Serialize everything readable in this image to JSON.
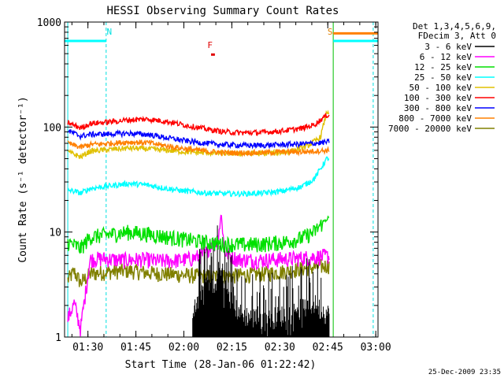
{
  "chart_data": {
    "type": "line",
    "title": "HESSI Observing Summary Count Rates",
    "xlabel": "Start Time (28-Jan-06 01:22:42)",
    "ylabel": "Count Rate (s⁻¹ detector⁻¹)",
    "yscale": "log",
    "ylim": [
      1,
      1000
    ],
    "xlim_minutes": [
      0,
      98
    ],
    "x_ticks": [
      {
        "m": 7.3,
        "label": "01:30"
      },
      {
        "m": 22.3,
        "label": "01:45"
      },
      {
        "m": 37.3,
        "label": "02:00"
      },
      {
        "m": 52.3,
        "label": "02:15"
      },
      {
        "m": 67.3,
        "label": "02:30"
      },
      {
        "m": 82.3,
        "label": "02:45"
      },
      {
        "m": 97.3,
        "label": "03:00"
      }
    ],
    "y_ticks": [
      {
        "v": 1,
        "label": "1"
      },
      {
        "v": 10,
        "label": "10"
      },
      {
        "v": 100,
        "label": "100"
      },
      {
        "v": 1000,
        "label": "1000"
      }
    ],
    "legend_header": [
      "Det 1,3,4,5,6,9,",
      "FDecim 3, Att 0"
    ],
    "legend_position": "top-right",
    "timestamp": "25-Dec-2009 23:35",
    "markers": [
      {
        "text": "N",
        "m": 13.0,
        "color": "#00e0e0"
      },
      {
        "text": "S",
        "m": 84.0,
        "color": "#e08000"
      },
      {
        "text": "F",
        "m": 44.5,
        "color": "#e00000"
      }
    ],
    "night_lines": [
      13.0,
      96.5
    ],
    "data_window": [
      1.0,
      82.8
    ],
    "series": [
      {
        "name": "3 - 6 keV",
        "color": "#000000",
        "points": [
          [
            41,
            1.8
          ],
          [
            43,
            2.8
          ],
          [
            45,
            3.5
          ],
          [
            47,
            2.6
          ],
          [
            48,
            4.5
          ],
          [
            50,
            3.0
          ],
          [
            52,
            2.2
          ],
          [
            55,
            1.6
          ],
          [
            58,
            1.5
          ],
          [
            62,
            1.4
          ],
          [
            66,
            1.5
          ],
          [
            70,
            1.6
          ],
          [
            74,
            1.8
          ],
          [
            78,
            2.0
          ],
          [
            82,
            1.6
          ]
        ]
      },
      {
        "name": "6 - 12 keV",
        "color": "#ff00ff",
        "points": [
          [
            1,
            1.5
          ],
          [
            3,
            2.1
          ],
          [
            5,
            1.2
          ],
          [
            8,
            5.5
          ],
          [
            12,
            5.6
          ],
          [
            18,
            5.4
          ],
          [
            24,
            5.5
          ],
          [
            30,
            5.3
          ],
          [
            36,
            5.4
          ],
          [
            40,
            5.6
          ],
          [
            44,
            6.2
          ],
          [
            46,
            8.0
          ],
          [
            47,
            7.5
          ],
          [
            48,
            9.0
          ],
          [
            49,
            15.0
          ],
          [
            50,
            6.5
          ],
          [
            54,
            5.5
          ],
          [
            60,
            5.4
          ],
          [
            66,
            5.5
          ],
          [
            72,
            5.6
          ],
          [
            78,
            5.8
          ],
          [
            82,
            5.9
          ]
        ]
      },
      {
        "name": "12 - 25 keV",
        "color": "#00e000",
        "points": [
          [
            1,
            8.0
          ],
          [
            3,
            7.5
          ],
          [
            5,
            7.0
          ],
          [
            8,
            9.0
          ],
          [
            14,
            9.5
          ],
          [
            20,
            10.0
          ],
          [
            26,
            9.6
          ],
          [
            32,
            9.0
          ],
          [
            38,
            8.5
          ],
          [
            44,
            8.0
          ],
          [
            50,
            7.7
          ],
          [
            56,
            7.6
          ],
          [
            62,
            7.7
          ],
          [
            68,
            8.0
          ],
          [
            74,
            8.7
          ],
          [
            78,
            10.0
          ],
          [
            82,
            13.5
          ]
        ]
      },
      {
        "name": "25 - 50 keV",
        "color": "#00ffff",
        "points": [
          [
            1,
            25
          ],
          [
            3,
            24.5
          ],
          [
            5,
            23.5
          ],
          [
            8,
            26
          ],
          [
            14,
            27.5
          ],
          [
            20,
            29
          ],
          [
            26,
            28
          ],
          [
            32,
            26
          ],
          [
            38,
            24.5
          ],
          [
            44,
            23.6
          ],
          [
            50,
            23.2
          ],
          [
            56,
            23.2
          ],
          [
            62,
            23.5
          ],
          [
            68,
            24.5
          ],
          [
            74,
            27
          ],
          [
            78,
            32
          ],
          [
            82,
            50
          ]
        ]
      },
      {
        "name": "50 - 100 keV",
        "color": "#e0c000",
        "points": [
          [
            1,
            58
          ],
          [
            3,
            55
          ],
          [
            5,
            52
          ],
          [
            8,
            59
          ],
          [
            14,
            61
          ],
          [
            20,
            63
          ],
          [
            26,
            62
          ],
          [
            32,
            60
          ],
          [
            38,
            58
          ],
          [
            44,
            57
          ],
          [
            50,
            56
          ],
          [
            56,
            56
          ],
          [
            62,
            56
          ],
          [
            68,
            57
          ],
          [
            72,
            60
          ],
          [
            76,
            66
          ],
          [
            80,
            80
          ],
          [
            82,
            140
          ]
        ]
      },
      {
        "name": "100 - 300 keV",
        "color": "#ff0000",
        "points": [
          [
            1,
            110
          ],
          [
            3,
            104
          ],
          [
            5,
            98
          ],
          [
            8,
            108
          ],
          [
            14,
            112
          ],
          [
            20,
            117
          ],
          [
            26,
            119
          ],
          [
            32,
            113
          ],
          [
            38,
            104
          ],
          [
            44,
            96
          ],
          [
            50,
            90
          ],
          [
            56,
            88
          ],
          [
            62,
            89
          ],
          [
            68,
            92
          ],
          [
            74,
            97
          ],
          [
            78,
            105
          ],
          [
            82,
            130
          ]
        ]
      },
      {
        "name": "300 - 800 keV",
        "color": "#0000ff",
        "points": [
          [
            1,
            92
          ],
          [
            3,
            87
          ],
          [
            5,
            82
          ],
          [
            8,
            85
          ],
          [
            14,
            86
          ],
          [
            20,
            87
          ],
          [
            26,
            85
          ],
          [
            32,
            79
          ],
          [
            38,
            74
          ],
          [
            44,
            70
          ],
          [
            50,
            68
          ],
          [
            56,
            67
          ],
          [
            62,
            67
          ],
          [
            68,
            68
          ],
          [
            74,
            69
          ],
          [
            78,
            70
          ],
          [
            82,
            72
          ]
        ]
      },
      {
        "name": "800 - 7000 keV",
        "color": "#ff8000",
        "points": [
          [
            1,
            70
          ],
          [
            3,
            67
          ],
          [
            5,
            64
          ],
          [
            8,
            68
          ],
          [
            14,
            70
          ],
          [
            20,
            72
          ],
          [
            26,
            71
          ],
          [
            32,
            66
          ],
          [
            38,
            62
          ],
          [
            44,
            59
          ],
          [
            50,
            57
          ],
          [
            56,
            57
          ],
          [
            62,
            57
          ],
          [
            68,
            58
          ],
          [
            74,
            58
          ],
          [
            78,
            59
          ],
          [
            82,
            60
          ]
        ]
      },
      {
        "name": "7000 - 20000 keV",
        "color": "#808000",
        "points": [
          [
            1,
            3.5
          ],
          [
            3,
            4.2
          ],
          [
            5,
            3.3
          ],
          [
            8,
            4.0
          ],
          [
            14,
            4.2
          ],
          [
            20,
            4.3
          ],
          [
            26,
            4.1
          ],
          [
            32,
            4.0
          ],
          [
            38,
            3.9
          ],
          [
            44,
            3.8
          ],
          [
            50,
            3.8
          ],
          [
            56,
            3.9
          ],
          [
            62,
            4.0
          ],
          [
            68,
            4.2
          ],
          [
            74,
            4.5
          ],
          [
            78,
            4.6
          ],
          [
            82,
            4.8
          ]
        ]
      }
    ],
    "flags": [
      {
        "color": "#00ffff",
        "value": 660,
        "from_m": 0,
        "to_m": 13.0
      },
      {
        "color": "#ff8000",
        "value": 780,
        "from_m": 84.0,
        "to_m": 98
      },
      {
        "color": "#00ffff",
        "value": 660,
        "from_m": 84.0,
        "to_m": 98
      },
      {
        "color": "#e00000",
        "value": 490,
        "from_m": 45.8,
        "to_m": 47.0
      }
    ]
  }
}
